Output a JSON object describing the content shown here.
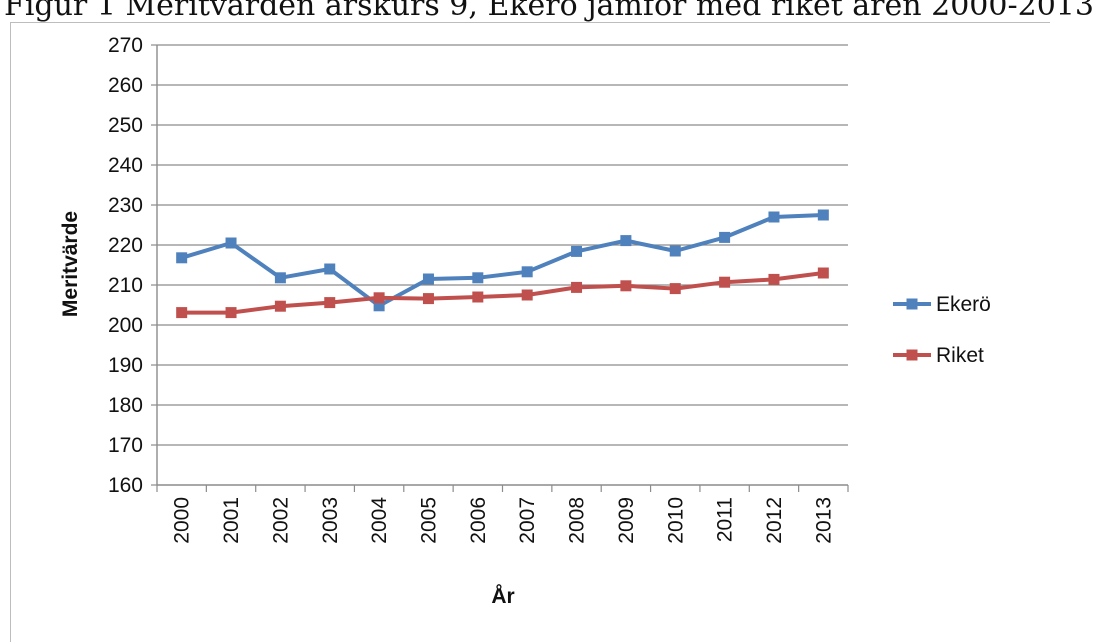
{
  "caption": "Figur 1 Meritvärden årskurs 9, Ekerö jämför med riket åren 2000-2013",
  "chart_data": {
    "type": "line",
    "title": "",
    "xlabel": "År",
    "ylabel": "Meritvärde",
    "ylim": [
      160,
      270
    ],
    "ytick_step": 10,
    "grid": "horizontal",
    "legend_position": "right",
    "x": [
      "2000",
      "2001",
      "2002",
      "2003",
      "2004",
      "2005",
      "2006",
      "2007",
      "2008",
      "2009",
      "2010",
      "2011",
      "2012",
      "2013"
    ],
    "series": [
      {
        "name": "Ekerö",
        "color": "#4f81bd",
        "marker": "square",
        "values": [
          216.8,
          220.5,
          211.8,
          214.0,
          204.8,
          211.5,
          211.8,
          213.3,
          218.4,
          221.1,
          218.5,
          221.9,
          227.0,
          227.5
        ]
      },
      {
        "name": "Riket",
        "color": "#c0504d",
        "marker": "square",
        "values": [
          203.1,
          203.1,
          204.7,
          205.6,
          206.8,
          206.6,
          207.0,
          207.5,
          209.4,
          209.8,
          209.1,
          210.7,
          211.4,
          213.0
        ]
      }
    ]
  }
}
